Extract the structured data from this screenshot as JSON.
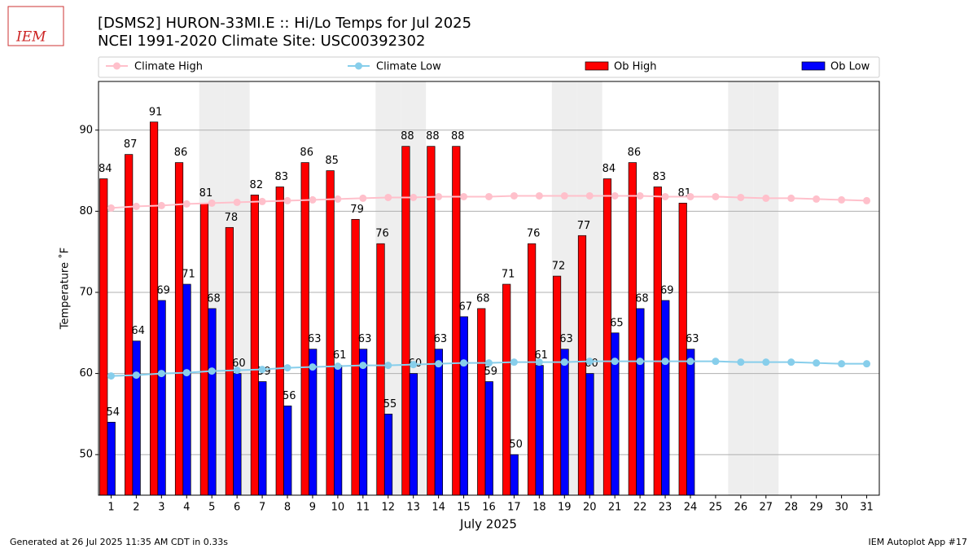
{
  "chart_data": {
    "type": "bar",
    "title": "[DSMS2] HURON-33MI.E :: Hi/Lo Temps for Jul 2025",
    "subtitle": "NCEI 1991-2020 Climate Site: USC00392302",
    "xlabel": "July 2025",
    "ylabel": "Temperature ˚F",
    "footer_left": "Generated at 26 Jul 2025 11:35 AM CDT in 0.33s",
    "footer_right": "IEM Autoplot App #17",
    "logo": "IEM",
    "categories": [
      "1",
      "2",
      "3",
      "4",
      "5",
      "6",
      "7",
      "8",
      "9",
      "10",
      "11",
      "12",
      "13",
      "14",
      "15",
      "16",
      "17",
      "18",
      "19",
      "20",
      "21",
      "22",
      "23",
      "24",
      "25",
      "26",
      "27",
      "28",
      "29",
      "30",
      "31"
    ],
    "shaded": [
      5,
      6,
      12,
      13,
      19,
      20,
      26,
      27
    ],
    "ylim": [
      45,
      96
    ],
    "yticks": [
      50,
      60,
      70,
      80,
      90
    ],
    "grid": true,
    "series": [
      {
        "name": "Climate High",
        "color": "#ffc0cb",
        "style": "line",
        "values": [
          80.4,
          80.6,
          80.7,
          80.9,
          81.0,
          81.1,
          81.2,
          81.3,
          81.4,
          81.5,
          81.6,
          81.7,
          81.7,
          81.8,
          81.8,
          81.8,
          81.9,
          81.9,
          81.9,
          81.9,
          81.9,
          81.9,
          81.8,
          81.8,
          81.8,
          81.7,
          81.6,
          81.6,
          81.5,
          81.4,
          81.3
        ]
      },
      {
        "name": "Climate Low",
        "color": "#87ceeb",
        "style": "line",
        "values": [
          59.7,
          59.8,
          60.0,
          60.1,
          60.3,
          60.4,
          60.5,
          60.7,
          60.8,
          60.9,
          61.0,
          61.0,
          61.1,
          61.2,
          61.3,
          61.3,
          61.4,
          61.4,
          61.4,
          61.5,
          61.5,
          61.5,
          61.5,
          61.5,
          61.5,
          61.4,
          61.4,
          61.4,
          61.3,
          61.2,
          61.2
        ]
      },
      {
        "name": "Ob High",
        "color": "#ff0000",
        "style": "bar",
        "values": [
          84,
          87,
          91,
          86,
          81,
          78,
          82,
          83,
          86,
          85,
          79,
          76,
          88,
          88,
          88,
          68,
          71,
          76,
          72,
          77,
          84,
          86,
          83,
          81,
          null,
          null,
          null,
          null,
          null,
          null,
          null
        ]
      },
      {
        "name": "Ob Low",
        "color": "#0000ff",
        "style": "bar",
        "values": [
          54,
          64,
          69,
          71,
          68,
          60,
          59,
          56,
          63,
          61,
          63,
          55,
          60,
          63,
          67,
          59,
          50,
          61,
          63,
          60,
          65,
          68,
          69,
          63,
          null,
          null,
          null,
          null,
          null,
          null,
          null
        ]
      }
    ]
  }
}
